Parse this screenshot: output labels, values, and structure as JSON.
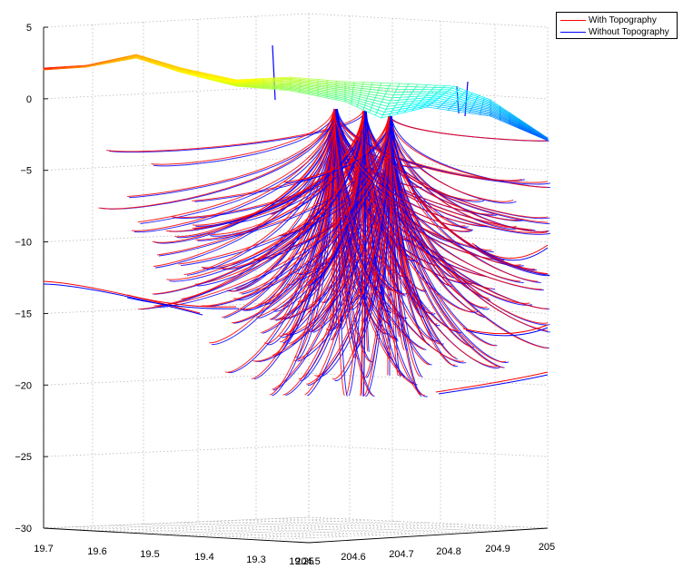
{
  "chart_data": {
    "type": "line",
    "title": "",
    "legend_position": "top-right",
    "grid": true,
    "x_axis": {
      "label": "",
      "ticks": [
        "19.7",
        "19.6",
        "19.5",
        "19.4",
        "19.3",
        "19.25"
      ],
      "range": [
        19.25,
        19.7
      ]
    },
    "y_axis": {
      "label": "",
      "ticks": [
        "204.5",
        "204.6",
        "204.7",
        "204.8",
        "204.9",
        "205"
      ],
      "range": [
        204.5,
        205
      ]
    },
    "z_axis": {
      "label": "",
      "ticks": [
        "5",
        "0",
        "-5",
        "-10",
        "-15",
        "-20",
        "-25",
        "-30"
      ],
      "range": [
        -30,
        5
      ]
    },
    "series": [
      {
        "name": "With Topography",
        "color": "#ff0000"
      },
      {
        "name": "Without Topography",
        "color": "#0000ff"
      }
    ],
    "surface_colormap": [
      "#ff0000",
      "#ffaa00",
      "#ffff00",
      "#66ff66",
      "#00ffff",
      "#0066ff"
    ]
  }
}
